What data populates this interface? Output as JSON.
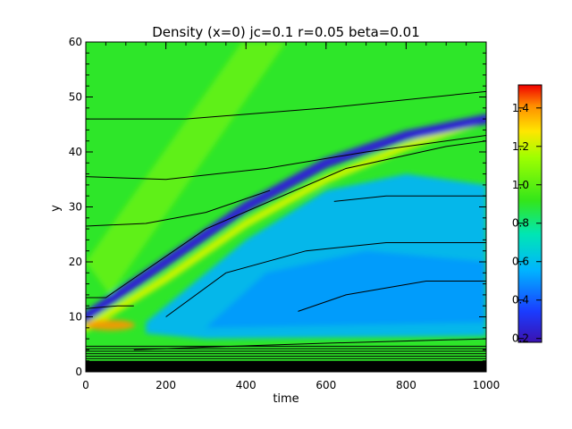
{
  "chart_data": {
    "type": "heatmap",
    "title": "Density (x=0) jc=0.1 r=0.05 beta=0.01",
    "xlabel": "time",
    "ylabel": "y",
    "xlim": [
      0,
      1000
    ],
    "ylim": [
      0,
      60
    ],
    "x_ticks": [
      "0",
      "200",
      "400",
      "600",
      "800",
      "1000"
    ],
    "y_ticks": [
      "0",
      "10",
      "20",
      "30",
      "40",
      "50",
      "60"
    ],
    "colorbar": {
      "range": [
        0.18,
        1.52
      ],
      "ticks": [
        "0.2",
        "0.4",
        "0.6",
        "0.8",
        "1.0",
        "1.2",
        "1.4"
      ],
      "colormap": "rainbow (purple-blue-cyan-green-yellow-orange-red)"
    },
    "background_level": 0.9,
    "features": [
      {
        "kind": "dense wave front ridge",
        "level": 1.2,
        "path_time": [
          0,
          200,
          400,
          600,
          800,
          1000
        ],
        "path_y": [
          8,
          17,
          27,
          35,
          41,
          46
        ]
      },
      {
        "kind": "rarefied trough",
        "level": 0.25,
        "path_time": [
          0,
          200,
          400,
          600,
          800,
          1000
        ],
        "path_y": [
          10,
          20,
          30,
          38,
          43,
          46
        ]
      },
      {
        "kind": "depleted region",
        "level": 0.55,
        "time_range": [
          150,
          1000
        ],
        "y_range": [
          6,
          35
        ]
      },
      {
        "kind": "dense wall layer",
        "level": 0.1,
        "y_range": [
          0,
          2
        ]
      }
    ],
    "contours": [
      {
        "time": [
          0,
          250,
          600,
          1000
        ],
        "y": [
          46,
          46,
          48,
          51
        ]
      },
      {
        "time": [
          0,
          200,
          450,
          700,
          1000
        ],
        "y": [
          35.5,
          35,
          37,
          40,
          43
        ]
      },
      {
        "time": [
          0,
          150,
          300,
          460
        ],
        "y": [
          26.5,
          27,
          29,
          33
        ]
      },
      {
        "time": [
          0,
          50,
          300,
          650,
          900,
          1000
        ],
        "y": [
          13.5,
          13.5,
          26,
          37,
          41,
          42
        ]
      },
      {
        "time": [
          0,
          80,
          120
        ],
        "y": [
          11.5,
          12,
          12
        ]
      },
      {
        "time": [
          200,
          350,
          550,
          750,
          1000
        ],
        "y": [
          10,
          18,
          22,
          23.5,
          23.5
        ]
      },
      {
        "time": [
          530,
          650,
          850,
          1000
        ],
        "y": [
          11,
          14,
          16.5,
          16.5
        ]
      },
      {
        "time": [
          620,
          750,
          1000
        ],
        "y": [
          31,
          32,
          32
        ]
      },
      {
        "time": [
          120,
          300,
          600,
          1000
        ],
        "y": [
          4,
          4.5,
          5.2,
          6
        ]
      }
    ]
  }
}
